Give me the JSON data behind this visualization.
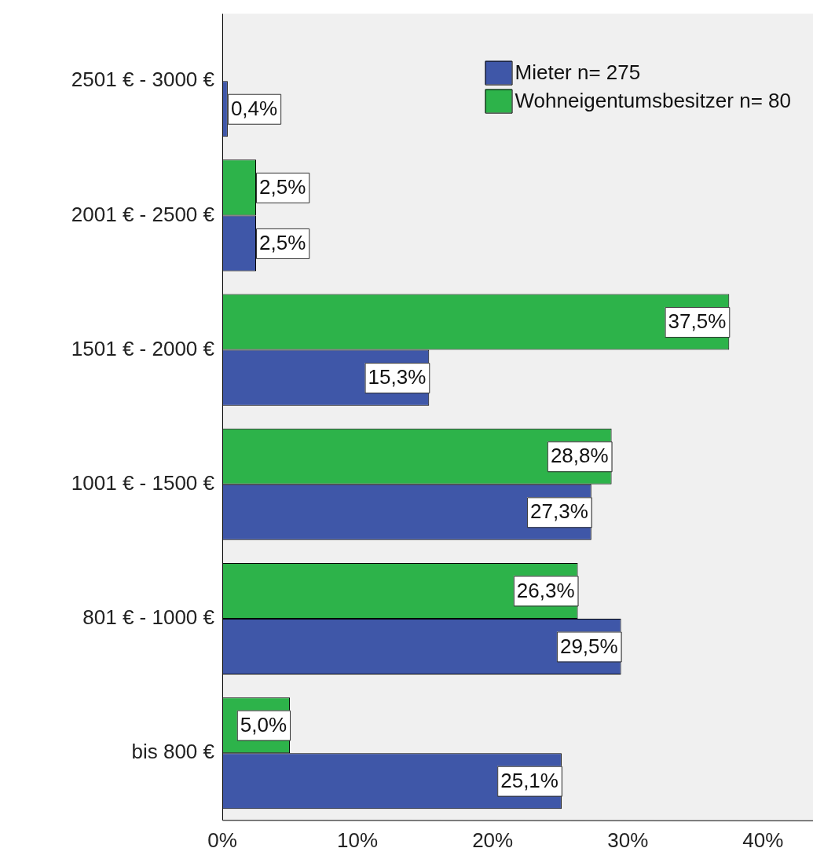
{
  "chart_data": {
    "type": "bar",
    "orientation": "horizontal",
    "categories": [
      "2501 € - 3000 €",
      "2001 € - 2500 €",
      "1501 € - 2000 €",
      "1001 € - 1500 €",
      "801 € - 1000 €",
      "bis 800 €"
    ],
    "series": [
      {
        "name": "Mieter n= 275",
        "color": "#3f57a8",
        "values": [
          0.4,
          2.5,
          15.3,
          27.3,
          29.5,
          25.1
        ],
        "value_labels": [
          "0,4%",
          "2,5%",
          "15,3%",
          "27,3%",
          "29,5%",
          "25,1%"
        ]
      },
      {
        "name": "Wohneigentumsbesitzer n= 80",
        "color": "#2db34a",
        "values": [
          null,
          2.5,
          37.5,
          28.8,
          26.3,
          5.0
        ],
        "value_labels": [
          null,
          "2,5%",
          "37,5%",
          "28,8%",
          "26,3%",
          "5,0%"
        ]
      }
    ],
    "xlim": [
      0,
      43.7
    ],
    "xticks": [
      {
        "value": 0,
        "label": "0%"
      },
      {
        "value": 10,
        "label": "10%"
      },
      {
        "value": 20,
        "label": "20%"
      },
      {
        "value": 30,
        "label": "30%"
      },
      {
        "value": 40,
        "label": "40%"
      }
    ],
    "legend": "top right",
    "grid": false
  }
}
